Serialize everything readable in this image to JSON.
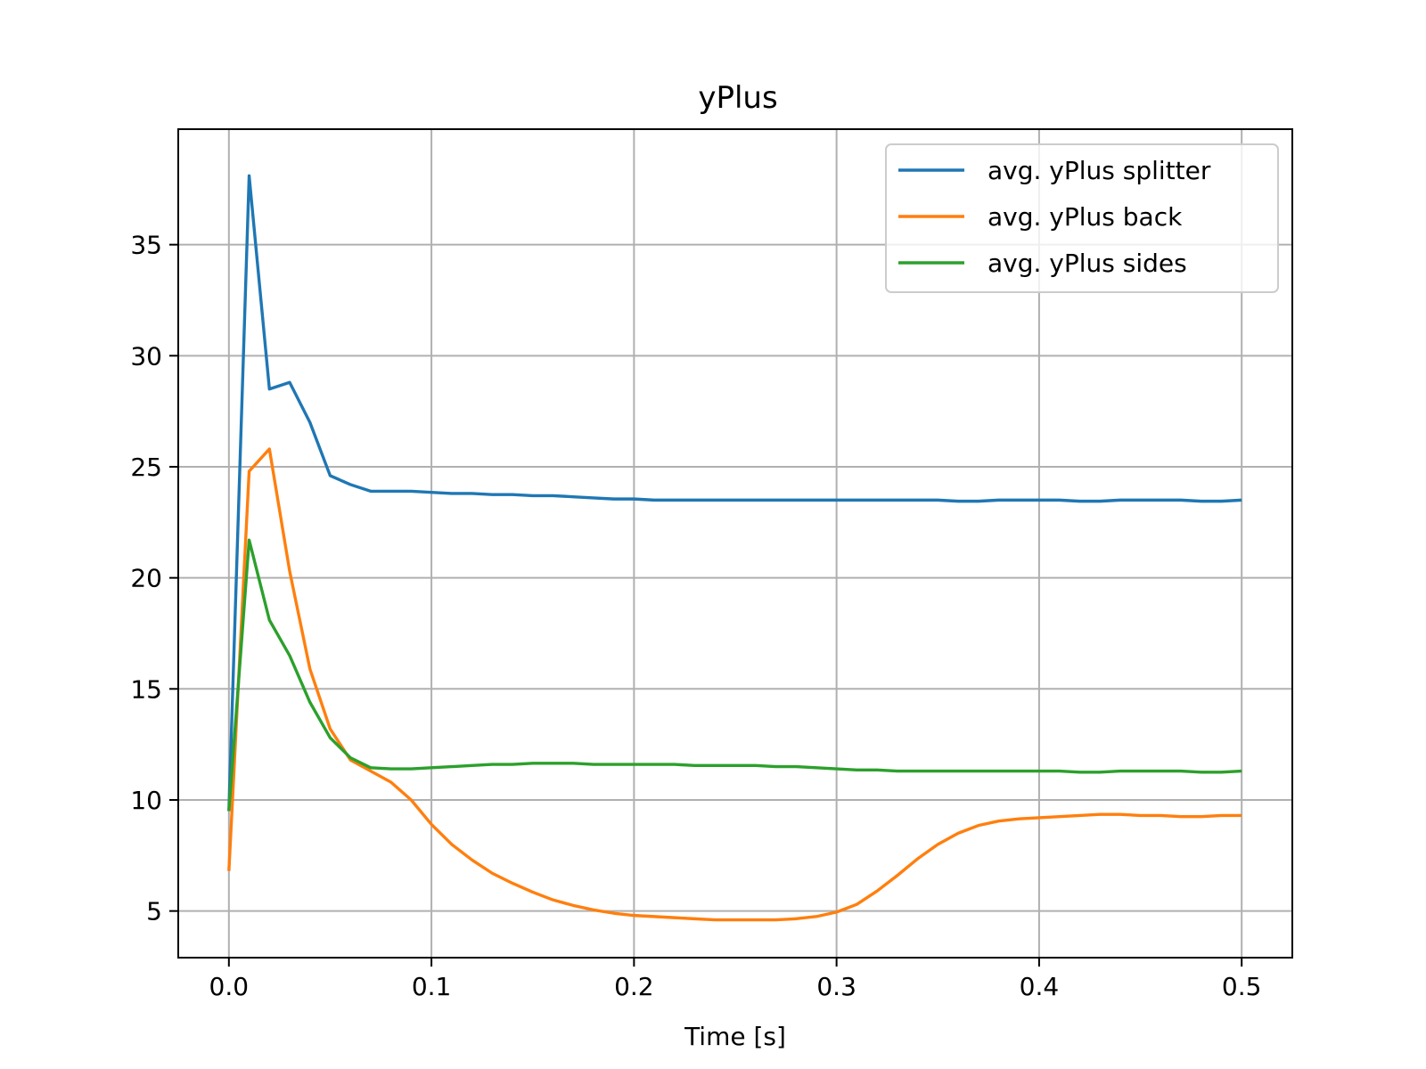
{
  "chart_data": {
    "type": "line",
    "title": "yPlus",
    "xlabel": "Time [s]",
    "ylabel": "",
    "xlim": [
      -0.025,
      0.525
    ],
    "ylim": [
      2.9,
      40.2
    ],
    "xticks": [
      0.0,
      0.1,
      0.2,
      0.3,
      0.4,
      0.5
    ],
    "xtick_labels": [
      "0.0",
      "0.1",
      "0.2",
      "0.3",
      "0.4",
      "0.5"
    ],
    "yticks": [
      5,
      10,
      15,
      20,
      25,
      30,
      35
    ],
    "ytick_labels": [
      "5",
      "10",
      "15",
      "20",
      "25",
      "30",
      "35"
    ],
    "grid": true,
    "legend_position": "top-right",
    "x": [
      0.0,
      0.01,
      0.02,
      0.03,
      0.04,
      0.05,
      0.06,
      0.07,
      0.08,
      0.09,
      0.1,
      0.11,
      0.12,
      0.13,
      0.14,
      0.15,
      0.16,
      0.17,
      0.18,
      0.19,
      0.2,
      0.21,
      0.22,
      0.23,
      0.24,
      0.25,
      0.26,
      0.27,
      0.28,
      0.29,
      0.3,
      0.31,
      0.32,
      0.33,
      0.34,
      0.35,
      0.36,
      0.37,
      0.38,
      0.39,
      0.4,
      0.41,
      0.42,
      0.43,
      0.44,
      0.45,
      0.46,
      0.47,
      0.48,
      0.49,
      0.5
    ],
    "series": [
      {
        "name": "avg. yPlus splitter",
        "color": "#1f77b4",
        "values": [
          9.5,
          38.1,
          28.5,
          28.8,
          27.0,
          24.6,
          24.2,
          23.9,
          23.9,
          23.9,
          23.85,
          23.8,
          23.8,
          23.75,
          23.75,
          23.7,
          23.7,
          23.65,
          23.6,
          23.55,
          23.55,
          23.5,
          23.5,
          23.5,
          23.5,
          23.5,
          23.5,
          23.5,
          23.5,
          23.5,
          23.5,
          23.5,
          23.5,
          23.5,
          23.5,
          23.5,
          23.45,
          23.45,
          23.5,
          23.5,
          23.5,
          23.5,
          23.45,
          23.45,
          23.5,
          23.5,
          23.5,
          23.5,
          23.45,
          23.45,
          23.5
        ]
      },
      {
        "name": "avg. yPlus back",
        "color": "#ff7f0e",
        "values": [
          6.8,
          24.8,
          25.8,
          20.3,
          15.9,
          13.2,
          11.8,
          11.3,
          10.8,
          10.0,
          8.9,
          8.0,
          7.3,
          6.7,
          6.25,
          5.85,
          5.5,
          5.25,
          5.05,
          4.9,
          4.8,
          4.75,
          4.7,
          4.65,
          4.6,
          4.6,
          4.6,
          4.6,
          4.65,
          4.75,
          4.95,
          5.3,
          5.9,
          6.6,
          7.35,
          8.0,
          8.5,
          8.85,
          9.05,
          9.15,
          9.2,
          9.25,
          9.3,
          9.35,
          9.35,
          9.3,
          9.3,
          9.25,
          9.25,
          9.3,
          9.3
        ]
      },
      {
        "name": "avg. yPlus sides",
        "color": "#2ca02c",
        "values": [
          9.5,
          21.7,
          18.1,
          16.5,
          14.4,
          12.8,
          11.9,
          11.45,
          11.4,
          11.4,
          11.45,
          11.5,
          11.55,
          11.6,
          11.6,
          11.65,
          11.65,
          11.65,
          11.6,
          11.6,
          11.6,
          11.6,
          11.6,
          11.55,
          11.55,
          11.55,
          11.55,
          11.5,
          11.5,
          11.45,
          11.4,
          11.35,
          11.35,
          11.3,
          11.3,
          11.3,
          11.3,
          11.3,
          11.3,
          11.3,
          11.3,
          11.3,
          11.25,
          11.25,
          11.3,
          11.3,
          11.3,
          11.3,
          11.25,
          11.25,
          11.3
        ]
      }
    ]
  }
}
